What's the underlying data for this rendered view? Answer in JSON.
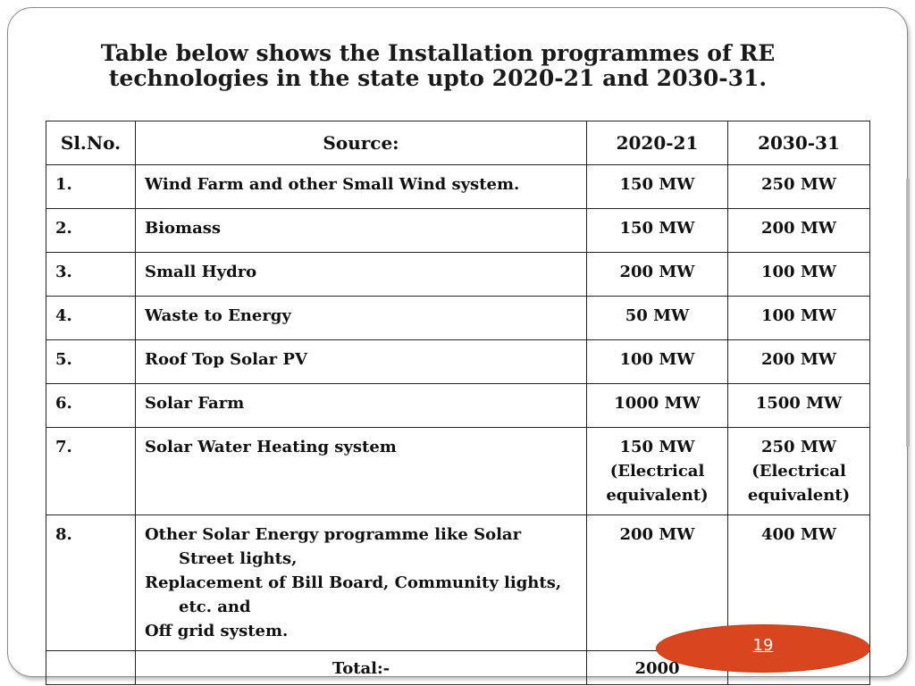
{
  "title": {
    "line1": "Table below shows the Installation programmes of RE",
    "line2": "technologies in the state upto 2020-21 and 2030-31."
  },
  "table": {
    "headers": [
      "Sl.No.",
      "Source:",
      "2020-21",
      "2030-31"
    ],
    "rows": [
      {
        "sl": "1.",
        "source": "Wind Farm and other Small Wind system.",
        "v2020": "150 MW",
        "v2030": "250 MW"
      },
      {
        "sl": "2.",
        "source": "Biomass",
        "v2020": "150 MW",
        "v2030": "200 MW"
      },
      {
        "sl": "3.",
        "source": "Small Hydro",
        "v2020": "200 MW",
        "v2030": "100 MW"
      },
      {
        "sl": "4.",
        "source": "Waste to Energy",
        "v2020": "50 MW",
        "v2030": "100 MW"
      },
      {
        "sl": "5.",
        "source": "Roof Top Solar PV",
        "v2020": "100 MW",
        "v2030": "200 MW"
      },
      {
        "sl": "6.",
        "source": "Solar Farm",
        "v2020": "1000 MW",
        "v2030": "1500 MW"
      },
      {
        "sl": "7.",
        "source": "Solar Water Heating system",
        "v2020": [
          "150 MW",
          "(Electrical",
          "equivalent)"
        ],
        "v2030": [
          "250 MW",
          "(Electrical",
          "equivalent)"
        ]
      },
      {
        "sl": "8.",
        "source": [
          "Other Solar Energy programme like Solar",
          "Street lights,",
          "Replacement of Bill Board, Community lights,",
          "etc. and",
          "Off grid system."
        ],
        "v2020": "200 MW",
        "v2030": "400 MW"
      }
    ],
    "total": {
      "label": "Total:-",
      "v2020": "2000 "
    }
  },
  "page_number": "19",
  "colors": {
    "badge": "#d9451e",
    "border": "#222222"
  }
}
